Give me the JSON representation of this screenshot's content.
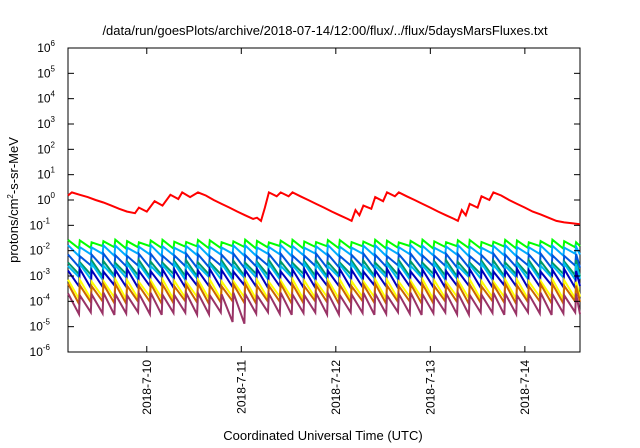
{
  "chart_data": {
    "type": "line",
    "title": "/data/run/goesPlots/archive/2018-07-14/12:00/flux/../flux/5daysMarsFluxes.txt",
    "xlabel": "Coordinated Universal Time (UTC)",
    "ylabel": {
      "base": "protons/cm",
      "sup": "2",
      "rest": "-s-sr-MeV"
    },
    "yscale": "log",
    "ylim": [
      1e-06,
      1000000.0
    ],
    "yticks": [
      {
        "exp": "-6",
        "value": 1e-06
      },
      {
        "exp": "-5",
        "value": 1e-05
      },
      {
        "exp": "-4",
        "value": 0.0001
      },
      {
        "exp": "-3",
        "value": 0.001
      },
      {
        "exp": "-2",
        "value": 0.01
      },
      {
        "exp": "-1",
        "value": 0.1
      },
      {
        "exp": "0",
        "value": 1
      },
      {
        "exp": "1",
        "value": 10
      },
      {
        "exp": "2",
        "value": 100
      },
      {
        "exp": "3",
        "value": 1000
      },
      {
        "exp": "4",
        "value": 10000
      },
      {
        "exp": "5",
        "value": 100000
      },
      {
        "exp": "6",
        "value": 1000000
      }
    ],
    "xlim": [
      "2018-07-09T04:00",
      "2018-07-14T14:00"
    ],
    "xticks": [
      {
        "label": "2018-7-10",
        "value": "2018-07-10"
      },
      {
        "label": "2018-7-11",
        "value": "2018-07-11"
      },
      {
        "label": "2018-7-12",
        "value": "2018-07-12"
      },
      {
        "label": "2018-7-13",
        "value": "2018-07-13"
      },
      {
        "label": "2018-7-14",
        "value": "2018-07-14"
      }
    ],
    "grid": false,
    "series": [
      {
        "color": "#ff0000",
        "points": [
          [
            "2018-07-09T04:00",
            1.5
          ],
          [
            "2018-07-09T05:00",
            2
          ],
          [
            "2018-07-09T07:00",
            1.6
          ],
          [
            "2018-07-09T09:00",
            1.3
          ],
          [
            "2018-07-09T11:00",
            1.0
          ],
          [
            "2018-07-09T13:00",
            0.8
          ],
          [
            "2018-07-09T15:00",
            0.6
          ],
          [
            "2018-07-09T17:00",
            0.45
          ],
          [
            "2018-07-09T19:00",
            0.35
          ],
          [
            "2018-07-09T21:00",
            0.3
          ],
          [
            "2018-07-09T22:00",
            0.5
          ],
          [
            "2018-07-10T00:00",
            0.35
          ],
          [
            "2018-07-10T02:00",
            0.9
          ],
          [
            "2018-07-10T04:00",
            0.6
          ],
          [
            "2018-07-10T06:00",
            1.6
          ],
          [
            "2018-07-10T08:00",
            1.1
          ],
          [
            "2018-07-10T09:00",
            2
          ],
          [
            "2018-07-10T11:00",
            1.3
          ],
          [
            "2018-07-10T13:00",
            2
          ],
          [
            "2018-07-10T15:00",
            1.5
          ],
          [
            "2018-07-10T17:00",
            1.0
          ],
          [
            "2018-07-10T19:00",
            0.7
          ],
          [
            "2018-07-10T21:00",
            0.5
          ],
          [
            "2018-07-10T23:00",
            0.35
          ],
          [
            "2018-07-11T01:00",
            0.25
          ],
          [
            "2018-07-11T03:00",
            0.18
          ],
          [
            "2018-07-11T04:00",
            0.2
          ],
          [
            "2018-07-11T05:00",
            0.15
          ],
          [
            "2018-07-11T06:00",
            0.5
          ],
          [
            "2018-07-11T07:00",
            2
          ],
          [
            "2018-07-11T09:00",
            1.4
          ],
          [
            "2018-07-11T10:00",
            2
          ],
          [
            "2018-07-11T12:00",
            1.4
          ],
          [
            "2018-07-11T13:00",
            2
          ],
          [
            "2018-07-11T15:00",
            1.4
          ],
          [
            "2018-07-11T17:00",
            1.0
          ],
          [
            "2018-07-11T19:00",
            0.7
          ],
          [
            "2018-07-11T21:00",
            0.5
          ],
          [
            "2018-07-11T23:00",
            0.35
          ],
          [
            "2018-07-12T01:00",
            0.25
          ],
          [
            "2018-07-12T03:00",
            0.18
          ],
          [
            "2018-07-12T04:00",
            0.15
          ],
          [
            "2018-07-12T05:00",
            0.4
          ],
          [
            "2018-07-12T06:00",
            0.25
          ],
          [
            "2018-07-12T07:00",
            0.6
          ],
          [
            "2018-07-12T09:00",
            0.45
          ],
          [
            "2018-07-12T10:00",
            1.3
          ],
          [
            "2018-07-12T12:00",
            0.9
          ],
          [
            "2018-07-12T13:00",
            2
          ],
          [
            "2018-07-12T15:00",
            1.4
          ],
          [
            "2018-07-12T16:00",
            2
          ],
          [
            "2018-07-12T18:00",
            1.4
          ],
          [
            "2018-07-12T20:00",
            1.0
          ],
          [
            "2018-07-12T22:00",
            0.7
          ],
          [
            "2018-07-13T00:00",
            0.5
          ],
          [
            "2018-07-13T02:00",
            0.35
          ],
          [
            "2018-07-13T04:00",
            0.25
          ],
          [
            "2018-07-13T06:00",
            0.18
          ],
          [
            "2018-07-13T07:00",
            0.15
          ],
          [
            "2018-07-13T08:00",
            0.4
          ],
          [
            "2018-07-13T09:00",
            0.25
          ],
          [
            "2018-07-13T10:00",
            0.7
          ],
          [
            "2018-07-13T12:00",
            0.5
          ],
          [
            "2018-07-13T13:00",
            1.4
          ],
          [
            "2018-07-13T15:00",
            1.0
          ],
          [
            "2018-07-13T16:00",
            2
          ],
          [
            "2018-07-13T18:00",
            1.5
          ],
          [
            "2018-07-13T20:00",
            1.0
          ],
          [
            "2018-07-13T22:00",
            0.7
          ],
          [
            "2018-07-14T00:00",
            0.5
          ],
          [
            "2018-07-14T02:00",
            0.35
          ],
          [
            "2018-07-14T04:00",
            0.27
          ],
          [
            "2018-07-14T06:00",
            0.2
          ],
          [
            "2018-07-14T08:00",
            0.15
          ],
          [
            "2018-07-14T10:00",
            0.13
          ],
          [
            "2018-07-14T12:00",
            0.12
          ],
          [
            "2018-07-14T14:00",
            0.11
          ]
        ]
      },
      {
        "color": "#00ff00",
        "mid": 0.018,
        "amp": 1.8,
        "drop": 0
      },
      {
        "color": "#00aaff",
        "mid": 0.01,
        "amp": 2.2,
        "drop": 0
      },
      {
        "color": "#0055dd",
        "mid": 0.004,
        "amp": 3.0,
        "drop": 0
      },
      {
        "color": "#009966",
        "mid": 0.002,
        "amp": 3.5,
        "drop": 0
      },
      {
        "color": "#00bbee",
        "mid": 0.0015,
        "amp": 3.5,
        "drop": 0
      },
      {
        "color": "#0000bb",
        "mid": 0.0008,
        "amp": 4.5,
        "drop": 0
      },
      {
        "color": "#ffff00",
        "mid": 0.0003,
        "amp": 5.0,
        "drop": 0
      },
      {
        "color": "#cc6600",
        "mid": 0.0002,
        "amp": 5.0,
        "drop": 0
      },
      {
        "color": "#993366",
        "mid": 8e-05,
        "amp": 6.0,
        "drop": 1
      }
    ]
  }
}
